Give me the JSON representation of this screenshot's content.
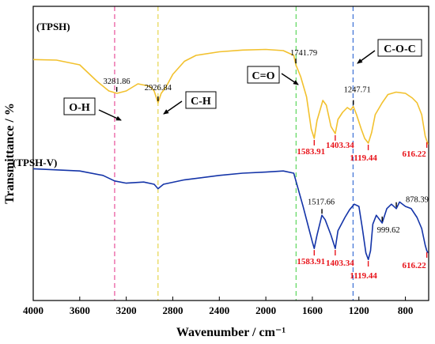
{
  "chart_data": {
    "type": "line",
    "xlabel": "Wavenumber / cm⁻¹",
    "ylabel": "Transmittance / %",
    "xlim": [
      4000,
      600
    ],
    "x_reversed": true,
    "x_ticks": [
      "4000",
      "3600",
      "3200",
      "2800",
      "2400",
      "2000",
      "1600",
      "1200",
      "800"
    ],
    "y_ticks_shown": false,
    "grid": false,
    "series": [
      {
        "name": "(TPSH)",
        "color": "#f2c12e",
        "points": [
          [
            4000,
            0.235
          ],
          [
            3800,
            0.24
          ],
          [
            3600,
            0.28
          ],
          [
            3450,
            0.42
          ],
          [
            3350,
            0.5
          ],
          [
            3280,
            0.52
          ],
          [
            3200,
            0.5
          ],
          [
            3100,
            0.44
          ],
          [
            3000,
            0.46
          ],
          [
            2960,
            0.5
          ],
          [
            2927,
            0.6
          ],
          [
            2900,
            0.52
          ],
          [
            2860,
            0.47
          ],
          [
            2800,
            0.36
          ],
          [
            2700,
            0.25
          ],
          [
            2600,
            0.2
          ],
          [
            2400,
            0.17
          ],
          [
            2200,
            0.155
          ],
          [
            2000,
            0.15
          ],
          [
            1850,
            0.16
          ],
          [
            1760,
            0.2
          ],
          [
            1742,
            0.28
          ],
          [
            1700,
            0.38
          ],
          [
            1650,
            0.55
          ],
          [
            1610,
            0.82
          ],
          [
            1584,
            0.9
          ],
          [
            1560,
            0.75
          ],
          [
            1510,
            0.58
          ],
          [
            1480,
            0.62
          ],
          [
            1440,
            0.8
          ],
          [
            1403,
            0.86
          ],
          [
            1380,
            0.74
          ],
          [
            1340,
            0.68
          ],
          [
            1300,
            0.64
          ],
          [
            1270,
            0.66
          ],
          [
            1248,
            0.63
          ],
          [
            1220,
            0.7
          ],
          [
            1180,
            0.82
          ],
          [
            1150,
            0.9
          ],
          [
            1119,
            0.94
          ],
          [
            1090,
            0.85
          ],
          [
            1060,
            0.7
          ],
          [
            1000,
            0.6
          ],
          [
            950,
            0.53
          ],
          [
            880,
            0.51
          ],
          [
            800,
            0.52
          ],
          [
            740,
            0.56
          ],
          [
            700,
            0.6
          ],
          [
            660,
            0.7
          ],
          [
            630,
            0.88
          ],
          [
            616,
            0.92
          ],
          [
            605,
            0.95
          ]
        ],
        "labels": [
          {
            "x": 3281.86,
            "text": "3281.86",
            "style": "normal"
          },
          {
            "x": 2926.84,
            "text": "2926.84",
            "style": "normal"
          },
          {
            "x": 1741.79,
            "text": "1741.79",
            "style": "normal"
          },
          {
            "x": 1247.71,
            "text": "1247.71",
            "style": "normal"
          },
          {
            "x": 1583.91,
            "text": "1583.91",
            "style": "red"
          },
          {
            "x": 1403.34,
            "text": "1403.34",
            "style": "red"
          },
          {
            "x": 1119.44,
            "text": "1119.44",
            "style": "red"
          },
          {
            "x": 616.22,
            "text": "616.22",
            "style": "red"
          }
        ]
      },
      {
        "name": "(TPSH-V)",
        "color": "#1434a8",
        "points": [
          [
            4000,
            0.06
          ],
          [
            3600,
            0.08
          ],
          [
            3400,
            0.12
          ],
          [
            3300,
            0.17
          ],
          [
            3200,
            0.19
          ],
          [
            3050,
            0.18
          ],
          [
            2960,
            0.2
          ],
          [
            2927,
            0.24
          ],
          [
            2880,
            0.2
          ],
          [
            2700,
            0.16
          ],
          [
            2400,
            0.12
          ],
          [
            2200,
            0.1
          ],
          [
            2000,
            0.09
          ],
          [
            1850,
            0.08
          ],
          [
            1760,
            0.1
          ],
          [
            1720,
            0.25
          ],
          [
            1680,
            0.4
          ],
          [
            1630,
            0.6
          ],
          [
            1600,
            0.72
          ],
          [
            1584,
            0.78
          ],
          [
            1560,
            0.66
          ],
          [
            1518,
            0.48
          ],
          [
            1490,
            0.52
          ],
          [
            1440,
            0.66
          ],
          [
            1403,
            0.78
          ],
          [
            1380,
            0.62
          ],
          [
            1320,
            0.5
          ],
          [
            1280,
            0.43
          ],
          [
            1240,
            0.38
          ],
          [
            1200,
            0.4
          ],
          [
            1170,
            0.6
          ],
          [
            1140,
            0.82
          ],
          [
            1119,
            0.88
          ],
          [
            1100,
            0.8
          ],
          [
            1080,
            0.56
          ],
          [
            1050,
            0.48
          ],
          [
            1000,
            0.55
          ],
          [
            960,
            0.42
          ],
          [
            920,
            0.38
          ],
          [
            878,
            0.42
          ],
          [
            850,
            0.36
          ],
          [
            800,
            0.4
          ],
          [
            750,
            0.42
          ],
          [
            700,
            0.5
          ],
          [
            660,
            0.6
          ],
          [
            630,
            0.75
          ],
          [
            616,
            0.8
          ],
          [
            605,
            0.82
          ]
        ],
        "labels": [
          {
            "x": 1517.66,
            "text": "1517.66",
            "style": "normal"
          },
          {
            "x": 999.62,
            "text": "999.62",
            "style": "normal"
          },
          {
            "x": 878.39,
            "text": "878.39",
            "style": "normal"
          },
          {
            "x": 1583.91,
            "text": "1583.91",
            "style": "red"
          },
          {
            "x": 1403.34,
            "text": "1403.34",
            "style": "red"
          },
          {
            "x": 1119.44,
            "text": "1119.44",
            "style": "red"
          },
          {
            "x": 616.22,
            "text": "616.22",
            "style": "red"
          }
        ]
      }
    ],
    "reference_lines": [
      {
        "x": 3300,
        "color": "#e8509a"
      },
      {
        "x": 2927,
        "color": "#e6d64b"
      },
      {
        "x": 1740,
        "color": "#5cd65c"
      },
      {
        "x": 1250,
        "color": "#3b6fd6"
      }
    ],
    "annotations": [
      {
        "text": "O-H",
        "boxed": true
      },
      {
        "text": "C-H",
        "boxed": true
      },
      {
        "text": "C=O",
        "boxed": true
      },
      {
        "text": "C-O-C",
        "boxed": true
      }
    ]
  }
}
